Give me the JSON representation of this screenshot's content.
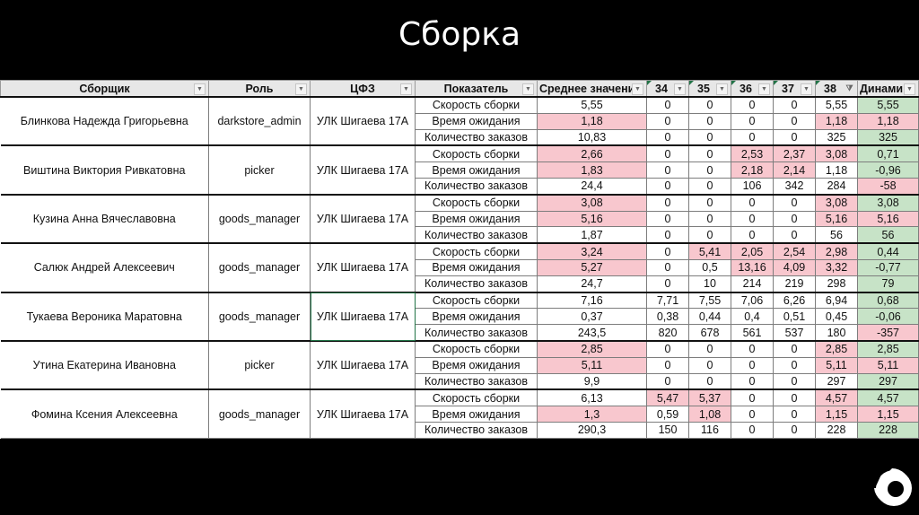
{
  "slide": {
    "title": "Сборка"
  },
  "table": {
    "headers": [
      "Сборщик",
      "Роль",
      "ЦФЗ",
      "Показатель",
      "Среднее значени",
      "34",
      "35",
      "36",
      "37",
      "38",
      "Динами"
    ],
    "filter_active_column": "38",
    "groups": [
      {
        "name": "Блинкова Надежда Григорьевна",
        "role": "darkstore_admin",
        "cfz": "УЛК Шигаева 17А",
        "rows": [
          {
            "indicator": "Скорость сборки",
            "avg": "5,55",
            "w34": "0",
            "w35": "0",
            "w36": "0",
            "w37": "0",
            "w38": "5,55",
            "dyn": "5,55"
          },
          {
            "indicator": "Время ожидания",
            "avg": "1,18",
            "w34": "0",
            "w35": "0",
            "w36": "0",
            "w37": "0",
            "w38": "1,18",
            "dyn": "1,18"
          },
          {
            "indicator": "Количество заказов",
            "avg": "10,83",
            "w34": "0",
            "w35": "0",
            "w36": "0",
            "w37": "0",
            "w38": "325",
            "dyn": "325"
          }
        ]
      },
      {
        "name": "Виштина Виктория Ривкатовна",
        "role": "picker",
        "cfz": "УЛК Шигаева 17А",
        "rows": [
          {
            "indicator": "Скорость сборки",
            "avg": "2,66",
            "w34": "0",
            "w35": "0",
            "w36": "2,53",
            "w37": "2,37",
            "w38": "3,08",
            "dyn": "0,71"
          },
          {
            "indicator": "Время ожидания",
            "avg": "1,83",
            "w34": "0",
            "w35": "0",
            "w36": "2,18",
            "w37": "2,14",
            "w38": "1,18",
            "dyn": "-0,96"
          },
          {
            "indicator": "Количество заказов",
            "avg": "24,4",
            "w34": "0",
            "w35": "0",
            "w36": "106",
            "w37": "342",
            "w38": "284",
            "dyn": "-58"
          }
        ]
      },
      {
        "name": "Кузина Анна Вячеславовна",
        "role": "goods_manager",
        "cfz": "УЛК Шигаева 17А",
        "rows": [
          {
            "indicator": "Скорость сборки",
            "avg": "3,08",
            "w34": "0",
            "w35": "0",
            "w36": "0",
            "w37": "0",
            "w38": "3,08",
            "dyn": "3,08"
          },
          {
            "indicator": "Время ожидания",
            "avg": "5,16",
            "w34": "0",
            "w35": "0",
            "w36": "0",
            "w37": "0",
            "w38": "5,16",
            "dyn": "5,16"
          },
          {
            "indicator": "Количество заказов",
            "avg": "1,87",
            "w34": "0",
            "w35": "0",
            "w36": "0",
            "w37": "0",
            "w38": "56",
            "dyn": "56"
          }
        ]
      },
      {
        "name": "Салюк Андрей Алексеевич",
        "role": "goods_manager",
        "cfz": "УЛК Шигаева 17А",
        "rows": [
          {
            "indicator": "Скорость сборки",
            "avg": "3,24",
            "w34": "0",
            "w35": "5,41",
            "w36": "2,05",
            "w37": "2,54",
            "w38": "2,98",
            "dyn": "0,44"
          },
          {
            "indicator": "Время ожидания",
            "avg": "5,27",
            "w34": "0",
            "w35": "0,5",
            "w36": "13,16",
            "w37": "4,09",
            "w38": "3,32",
            "dyn": "-0,77"
          },
          {
            "indicator": "Количество заказов",
            "avg": "24,7",
            "w34": "0",
            "w35": "10",
            "w36": "214",
            "w37": "219",
            "w38": "298",
            "dyn": "79"
          }
        ]
      },
      {
        "name": "Тукаева Вероника Маратовна",
        "role": "goods_manager",
        "cfz": "УЛК Шигаева 17А",
        "rows": [
          {
            "indicator": "Скорость сборки",
            "avg": "7,16",
            "w34": "7,71",
            "w35": "7,55",
            "w36": "7,06",
            "w37": "6,26",
            "w38": "6,94",
            "dyn": "0,68"
          },
          {
            "indicator": "Время ожидания",
            "avg": "0,37",
            "w34": "0,38",
            "w35": "0,44",
            "w36": "0,4",
            "w37": "0,51",
            "w38": "0,45",
            "dyn": "-0,06"
          },
          {
            "indicator": "Количество заказов",
            "avg": "243,5",
            "w34": "820",
            "w35": "678",
            "w36": "561",
            "w37": "537",
            "w38": "180",
            "dyn": "-357"
          }
        ]
      },
      {
        "name": "Утина Екатерина Ивановна",
        "role": "picker",
        "cfz": "УЛК Шигаева 17А",
        "rows": [
          {
            "indicator": "Скорость сборки",
            "avg": "2,85",
            "w34": "0",
            "w35": "0",
            "w36": "0",
            "w37": "0",
            "w38": "2,85",
            "dyn": "2,85"
          },
          {
            "indicator": "Время ожидания",
            "avg": "5,11",
            "w34": "0",
            "w35": "0",
            "w36": "0",
            "w37": "0",
            "w38": "5,11",
            "dyn": "5,11"
          },
          {
            "indicator": "Количество заказов",
            "avg": "9,9",
            "w34": "0",
            "w35": "0",
            "w36": "0",
            "w37": "0",
            "w38": "297",
            "dyn": "297"
          }
        ]
      },
      {
        "name": "Фомина Ксения Алексеевна",
        "role": "goods_manager",
        "cfz": "УЛК Шигаева 17А",
        "rows": [
          {
            "indicator": "Скорость сборки",
            "avg": "6,13",
            "w34": "5,47",
            "w35": "5,37",
            "w36": "0",
            "w37": "0",
            "w38": "4,57",
            "dyn": "4,57"
          },
          {
            "indicator": "Время ожидания",
            "avg": "1,3",
            "w34": "0,59",
            "w35": "1,08",
            "w36": "0",
            "w37": "0",
            "w38": "1,15",
            "dyn": "1,15"
          },
          {
            "indicator": "Количество заказов",
            "avg": "290,3",
            "w34": "150",
            "w35": "116",
            "w36": "0",
            "w37": "0",
            "w38": "228",
            "dyn": "228"
          }
        ]
      }
    ]
  },
  "colors": {
    "red_fill": "#f8c7ce",
    "green_fill": "#c7e3c7",
    "header_fill": "#e7e7e7",
    "background": "#000000"
  },
  "logo": {
    "icon": "ring-logo-icon"
  }
}
